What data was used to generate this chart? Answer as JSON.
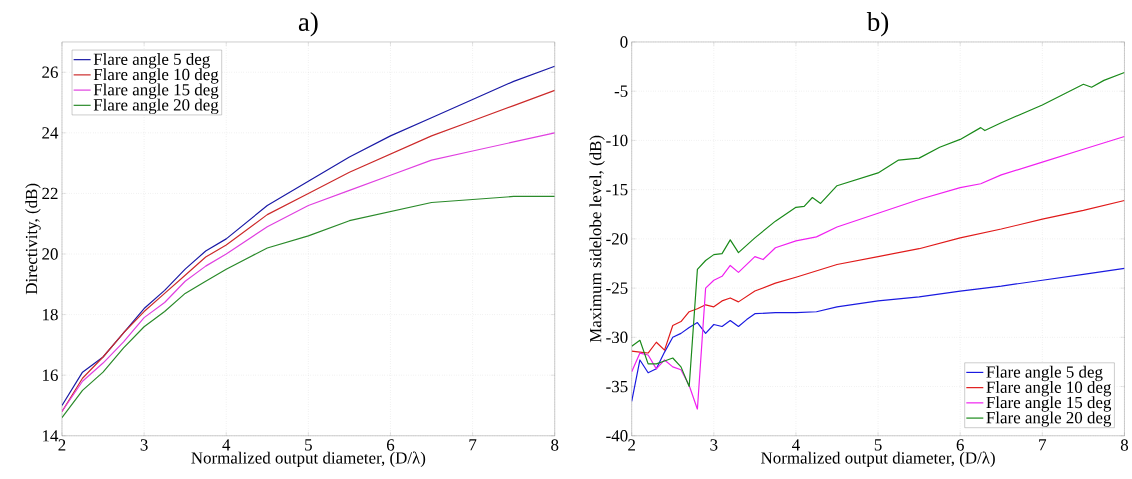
{
  "chart_data": [
    {
      "type": "line",
      "title": "a)",
      "xlabel": "Normalized output diameter, (D/λ)",
      "ylabel": "Directivity, (dB)",
      "xlim": [
        2,
        8
      ],
      "ylim": [
        14,
        27
      ],
      "xticks": [
        2,
        3,
        4,
        5,
        6,
        7,
        8
      ],
      "yticks": [
        14,
        16,
        18,
        20,
        22,
        24,
        26
      ],
      "grid": true,
      "legend": "top left",
      "marker": "none",
      "line_style": "solid",
      "series": [
        {
          "name": "Flare angle 5 deg",
          "color": "#1a1aa6",
          "x": [
            2,
            2.25,
            2.5,
            2.75,
            3,
            3.25,
            3.5,
            3.75,
            4,
            4.5,
            5,
            5.5,
            6,
            6.5,
            7,
            7.5,
            8
          ],
          "values": [
            15.0,
            16.1,
            16.6,
            17.4,
            18.2,
            18.8,
            19.5,
            20.1,
            20.5,
            21.6,
            22.4,
            23.2,
            23.9,
            24.5,
            25.1,
            25.7,
            26.2
          ]
        },
        {
          "name": "Flare angle 10 deg",
          "color": "#cc2a2a",
          "x": [
            2,
            2.25,
            2.5,
            2.75,
            3,
            3.25,
            3.5,
            3.75,
            4,
            4.5,
            5,
            5.5,
            6,
            6.5,
            7,
            7.5,
            8
          ],
          "values": [
            14.8,
            15.9,
            16.6,
            17.4,
            18.1,
            18.7,
            19.3,
            19.9,
            20.3,
            21.3,
            22.0,
            22.7,
            23.3,
            23.9,
            24.4,
            24.9,
            25.4
          ]
        },
        {
          "name": "Flare angle 15 deg",
          "color": "#e040e0",
          "x": [
            2,
            2.25,
            2.5,
            2.75,
            3,
            3.25,
            3.5,
            3.75,
            4,
            4.5,
            5,
            5.5,
            6,
            6.5,
            7,
            7.5,
            8
          ],
          "values": [
            14.8,
            15.8,
            16.4,
            17.1,
            17.9,
            18.4,
            19.1,
            19.6,
            20.0,
            20.9,
            21.6,
            22.1,
            22.6,
            23.1,
            23.4,
            23.7,
            24.0
          ]
        },
        {
          "name": "Flare angle 20 deg",
          "color": "#2a8a2a",
          "x": [
            2,
            2.25,
            2.5,
            2.75,
            3,
            3.25,
            3.5,
            3.75,
            4,
            4.5,
            5,
            5.5,
            6,
            6.5,
            7,
            7.5,
            8
          ],
          "values": [
            14.6,
            15.5,
            16.1,
            16.9,
            17.6,
            18.1,
            18.7,
            19.1,
            19.5,
            20.2,
            20.6,
            21.1,
            21.4,
            21.7,
            21.8,
            21.9,
            21.9
          ]
        }
      ]
    },
    {
      "type": "line",
      "title": "b)",
      "xlabel": "Normalized output diameter, (D/λ)",
      "ylabel": "Maximum sidelobe level, (dB)",
      "xlim": [
        2,
        8
      ],
      "ylim": [
        -40,
        0
      ],
      "xticks": [
        2,
        3,
        4,
        5,
        6,
        7,
        8
      ],
      "yticks": [
        -40,
        -35,
        -30,
        -25,
        -20,
        -15,
        -10,
        -5,
        0
      ],
      "grid": true,
      "legend": "bottom right",
      "marker": "none",
      "line_style": "solid",
      "series": [
        {
          "name": "Flare angle 5 deg",
          "color": "#1a1ae0",
          "x": [
            2,
            2.1,
            2.2,
            2.3,
            2.4,
            2.5,
            2.6,
            2.7,
            2.8,
            2.9,
            3.0,
            3.1,
            3.2,
            3.3,
            3.4,
            3.5,
            3.75,
            4,
            4.25,
            4.5,
            5,
            5.5,
            6,
            6.5,
            7,
            7.5,
            8
          ],
          "values": [
            -36.5,
            -32.3,
            -33.6,
            -33.2,
            -31.5,
            -30.0,
            -29.6,
            -29.0,
            -28.5,
            -29.6,
            -28.7,
            -28.9,
            -28.3,
            -28.9,
            -28.2,
            -27.6,
            -27.5,
            -27.5,
            -27.4,
            -26.9,
            -26.3,
            -25.9,
            -25.3,
            -24.8,
            -24.2,
            -23.6,
            -23.0
          ]
        },
        {
          "name": "Flare angle 10 deg",
          "color": "#e01a1a",
          "x": [
            2,
            2.1,
            2.2,
            2.3,
            2.4,
            2.5,
            2.6,
            2.7,
            2.8,
            2.9,
            3.0,
            3.1,
            3.2,
            3.3,
            3.5,
            3.75,
            4,
            4.5,
            5,
            5.5,
            6,
            6.5,
            7,
            7.5,
            8
          ],
          "values": [
            -31.4,
            -31.5,
            -31.6,
            -30.5,
            -31.3,
            -28.8,
            -28.4,
            -27.4,
            -27.1,
            -26.7,
            -26.9,
            -26.3,
            -26.0,
            -26.4,
            -25.3,
            -24.5,
            -23.9,
            -22.6,
            -21.8,
            -21.0,
            -19.9,
            -19.0,
            -18.0,
            -17.1,
            -16.1
          ]
        },
        {
          "name": "Flare angle 15 deg",
          "color": "#f020f0",
          "x": [
            2,
            2.1,
            2.2,
            2.3,
            2.4,
            2.5,
            2.6,
            2.7,
            2.8,
            2.9,
            3.0,
            3.1,
            3.2,
            3.3,
            3.5,
            3.6,
            3.75,
            4,
            4.25,
            4.5,
            5,
            5.5,
            6,
            6.25,
            6.5,
            7,
            7.5,
            8
          ],
          "values": [
            -33.5,
            -31.6,
            -31.8,
            -33.2,
            -32.3,
            -33.0,
            -33.3,
            -34.9,
            -37.3,
            -25.0,
            -24.2,
            -23.8,
            -22.7,
            -23.4,
            -21.8,
            -22.1,
            -20.9,
            -20.2,
            -19.8,
            -18.8,
            -17.4,
            -16.0,
            -14.8,
            -14.4,
            -13.5,
            -12.2,
            -10.9,
            -9.6
          ]
        },
        {
          "name": "Flare angle 20 deg",
          "color": "#1a8a1a",
          "x": [
            2,
            2.1,
            2.2,
            2.3,
            2.4,
            2.5,
            2.6,
            2.7,
            2.8,
            2.9,
            3.0,
            3.1,
            3.2,
            3.3,
            3.5,
            3.75,
            4,
            4.1,
            4.2,
            4.3,
            4.5,
            5,
            5.25,
            5.5,
            5.75,
            6,
            6.25,
            6.3,
            6.5,
            7,
            7.5,
            7.6,
            7.75,
            8
          ],
          "values": [
            -30.9,
            -30.3,
            -32.7,
            -32.7,
            -32.4,
            -32.1,
            -33.0,
            -35.0,
            -23.1,
            -22.2,
            -21.6,
            -21.5,
            -20.1,
            -21.4,
            -19.9,
            -18.2,
            -16.8,
            -16.7,
            -15.8,
            -16.4,
            -14.6,
            -13.3,
            -12.0,
            -11.8,
            -10.7,
            -9.9,
            -8.7,
            -9.0,
            -8.2,
            -6.4,
            -4.3,
            -4.6,
            -3.9,
            -3.1
          ]
        }
      ]
    }
  ]
}
